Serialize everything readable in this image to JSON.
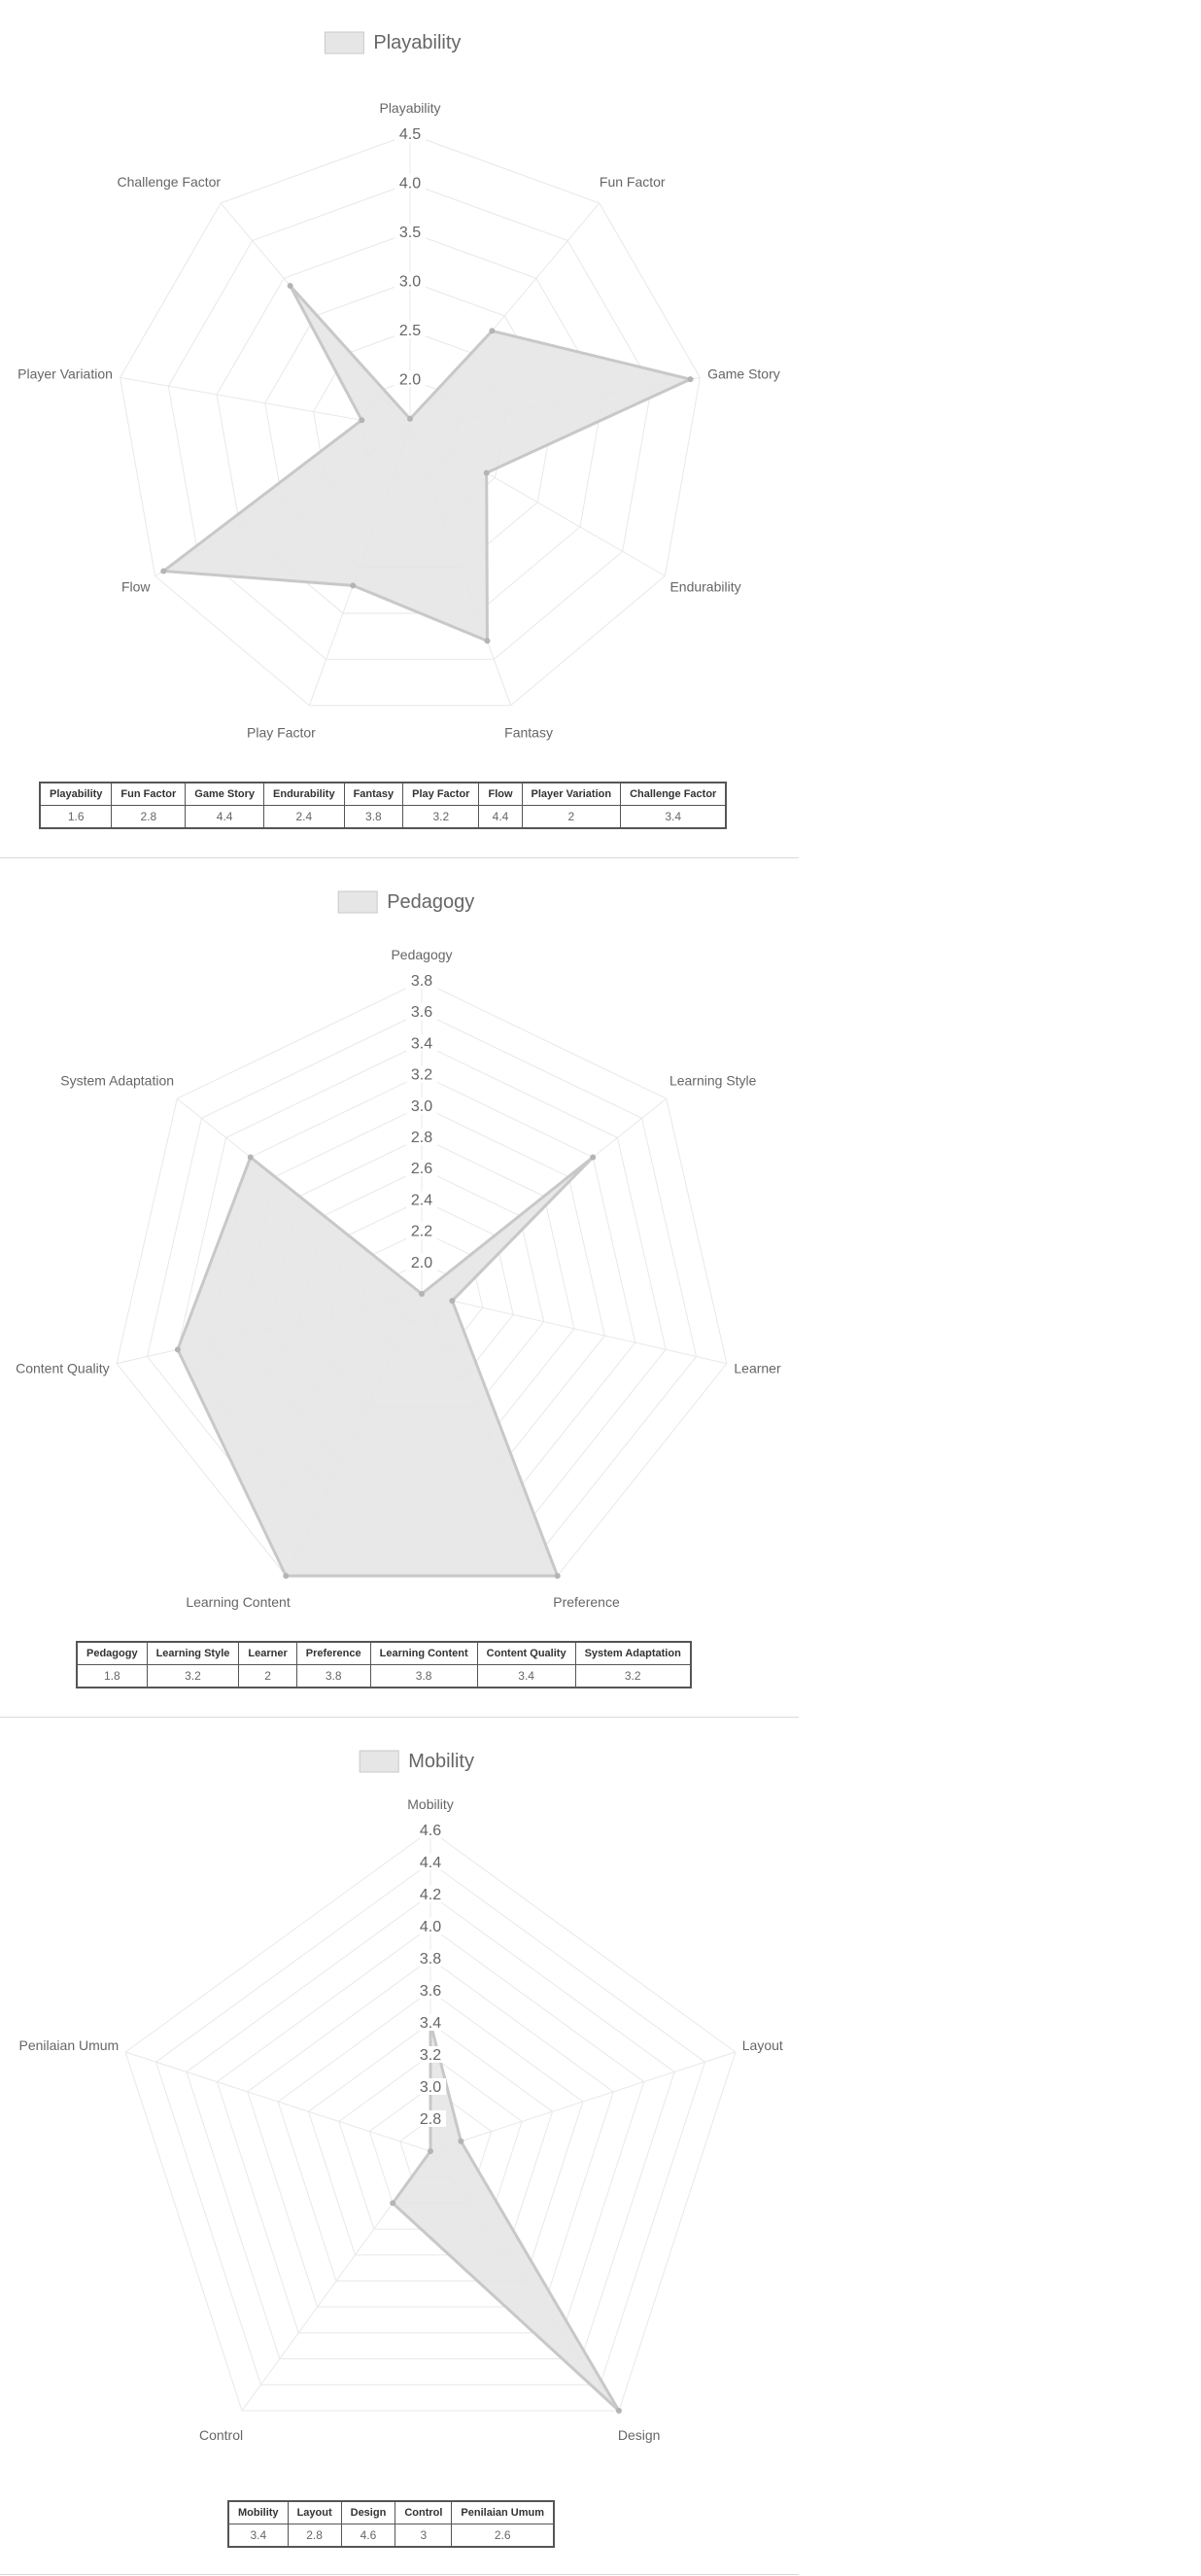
{
  "chart_data": [
    {
      "type": "radar",
      "legend": "Playability",
      "categories": [
        "Playability",
        "Fun Factor",
        "Game Story",
        "Endurability",
        "Fantasy",
        "Play Factor",
        "Flow",
        "Player Variation",
        "Challenge Factor"
      ],
      "values": [
        1.6,
        2.8,
        4.4,
        2.4,
        3.8,
        3.2,
        4.4,
        2,
        3.4
      ],
      "ticks": [
        "2.0",
        "2.5",
        "3.0",
        "3.5",
        "4.0",
        "4.5"
      ],
      "range": [
        1.5,
        4.5
      ],
      "table": {
        "headers": [
          "Playability",
          "Fun Factor",
          "Game Story",
          "Endurability",
          "Fantasy",
          "Play Factor",
          "Flow",
          "Player Variation",
          "Challenge Factor"
        ],
        "values": [
          "1.6",
          "2.8",
          "4.4",
          "2.4",
          "3.8",
          "3.2",
          "4.4",
          "2",
          "3.4"
        ]
      }
    },
    {
      "type": "radar",
      "legend": "Pedagogy",
      "categories": [
        "Pedagogy",
        "Learning Style",
        "Learner",
        "Preference",
        "Learning Content",
        "Content Quality",
        "System Adaptation"
      ],
      "values": [
        1.8,
        3.2,
        2,
        3.8,
        3.8,
        3.4,
        3.2
      ],
      "ticks": [
        "2.0",
        "2.2",
        "2.4",
        "2.6",
        "2.8",
        "3.0",
        "3.2",
        "3.4",
        "3.6",
        "3.8"
      ],
      "range": [
        1.8,
        3.8
      ],
      "table": {
        "headers": [
          "Pedagogy",
          "Learning Style",
          "Learner",
          "Preference",
          "Learning Content",
          "Content Quality",
          "System Adaptation"
        ],
        "values": [
          "1.8",
          "3.2",
          "2",
          "3.8",
          "3.8",
          "3.4",
          "3.2"
        ]
      }
    },
    {
      "type": "radar",
      "legend": "Mobility",
      "categories": [
        "Mobility",
        "Layout",
        "Design",
        "Control",
        "Penilaian Umum"
      ],
      "values": [
        3.4,
        2.8,
        4.6,
        3,
        2.6
      ],
      "ticks": [
        "2.8",
        "3.0",
        "3.2",
        "3.4",
        "3.6",
        "3.8",
        "4.0",
        "4.2",
        "4.4",
        "4.6"
      ],
      "range": [
        2.6,
        4.6
      ],
      "table": {
        "headers": [
          "Mobility",
          "Layout",
          "Design",
          "Control",
          "Penilaian Umum"
        ],
        "values": [
          "3.4",
          "2.8",
          "4.6",
          "3",
          "2.6"
        ]
      }
    }
  ],
  "colors": {
    "fill": "#e6e6e6",
    "line": "#c8c8c8",
    "grid": "#e8e8e8",
    "point": "#b4b4b4",
    "text": "#666666"
  }
}
